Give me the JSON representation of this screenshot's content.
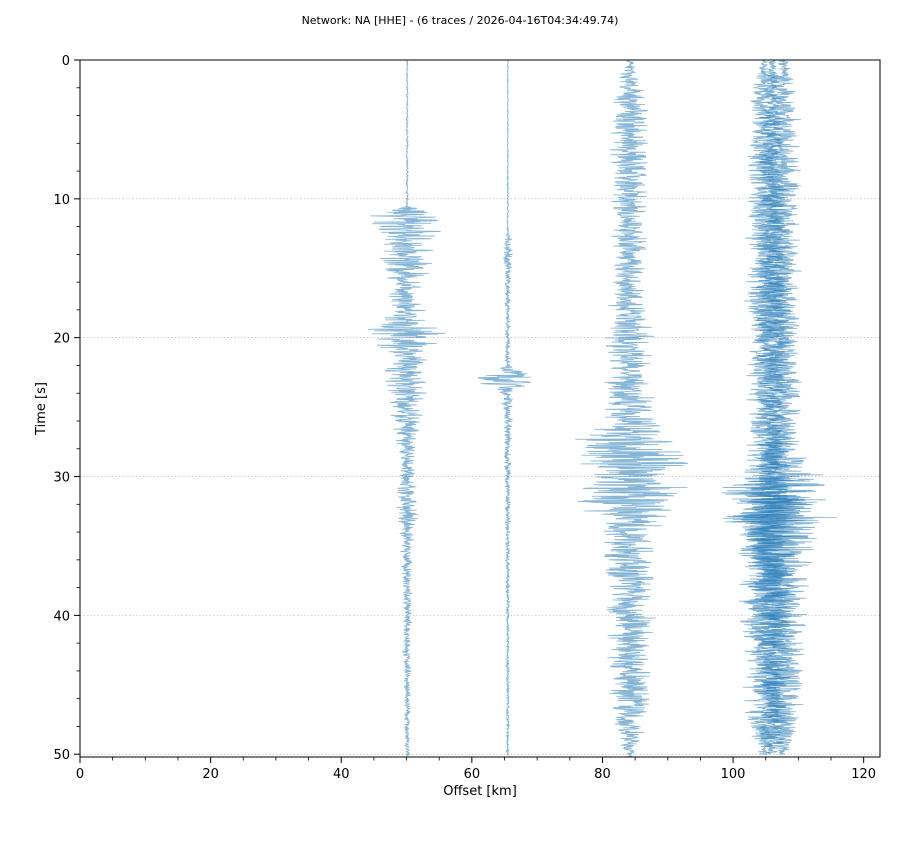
{
  "chart_data": {
    "type": "line",
    "title": "Network: NA [HHE] - (6 traces / 2026-04-16T04:34:49.74)",
    "xlabel": "Offset [km]",
    "ylabel": "Time [s]",
    "xlim": [
      0,
      122.5
    ],
    "ylim": [
      50.2,
      0
    ],
    "y_inverted": true,
    "x_ticks": [
      0,
      20,
      40,
      60,
      80,
      100,
      120
    ],
    "y_ticks": [
      0,
      10,
      20,
      30,
      40,
      50
    ],
    "x_minor_ticks": [
      5,
      10,
      15,
      25,
      30,
      35,
      45,
      50,
      55,
      65,
      70,
      75,
      85,
      90,
      95,
      105,
      110,
      115
    ],
    "y_minor_ticks": [
      2,
      4,
      6,
      8,
      12,
      14,
      16,
      18,
      22,
      24,
      26,
      28,
      32,
      34,
      36,
      38,
      42,
      44,
      46,
      48
    ],
    "grid": "horizontal dotted at y ticks",
    "trace_color": "#1f77b4",
    "trace_alpha": 0.55,
    "series": [
      {
        "offset_km": 50.1,
        "start_s": 0,
        "end_s": 50.1,
        "envelope": [
          [
            0,
            0.15
          ],
          [
            10.5,
            0.2
          ],
          [
            11.0,
            5
          ],
          [
            11.5,
            9
          ],
          [
            12,
            6
          ],
          [
            13.5,
            4
          ],
          [
            15,
            4.5
          ],
          [
            16,
            3
          ],
          [
            18,
            3
          ],
          [
            19,
            5
          ],
          [
            20,
            8
          ],
          [
            21,
            3.5
          ],
          [
            23,
            4
          ],
          [
            25,
            3
          ],
          [
            27,
            2
          ],
          [
            29,
            1.2
          ],
          [
            32,
            2
          ],
          [
            35,
            1
          ],
          [
            40,
            0.8
          ],
          [
            45,
            0.6
          ],
          [
            48,
            0.5
          ],
          [
            50.1,
            0.4
          ]
        ]
      },
      {
        "offset_km": 65.5,
        "start_s": 0,
        "end_s": 50.1,
        "envelope": [
          [
            0,
            0.1
          ],
          [
            12.5,
            0.15
          ],
          [
            13,
            0.8
          ],
          [
            14,
            0.9
          ],
          [
            16,
            0.5
          ],
          [
            20,
            0.4
          ],
          [
            22,
            0.5
          ],
          [
            22.5,
            3
          ],
          [
            23,
            8
          ],
          [
            23.5,
            3
          ],
          [
            24,
            1.2
          ],
          [
            26,
            0.8
          ],
          [
            30,
            0.5
          ],
          [
            40,
            0.3
          ],
          [
            50.1,
            0.25
          ]
        ]
      },
      {
        "offset_km": 84.2,
        "start_s": 0,
        "end_s": 50.2,
        "envelope": [
          [
            0,
            0.5
          ],
          [
            1,
            1.5
          ],
          [
            3,
            3
          ],
          [
            5,
            3.5
          ],
          [
            8,
            3
          ],
          [
            10,
            3
          ],
          [
            13,
            3
          ],
          [
            16,
            3
          ],
          [
            18,
            3.5
          ],
          [
            20,
            4
          ],
          [
            24,
            4
          ],
          [
            26,
            5
          ],
          [
            26.8,
            8
          ],
          [
            27.5,
            10
          ],
          [
            28.5,
            11
          ],
          [
            29.5,
            9
          ],
          [
            31.5,
            10
          ],
          [
            33,
            6
          ],
          [
            35,
            4
          ],
          [
            38,
            4.5
          ],
          [
            40,
            4
          ],
          [
            43,
            4
          ],
          [
            46,
            3.5
          ],
          [
            48,
            3
          ],
          [
            49.5,
            1.5
          ],
          [
            50.2,
            0.5
          ]
        ]
      },
      {
        "offset_km": 104.8,
        "start_s": 0,
        "end_s": 50.0,
        "envelope": [
          [
            0,
            0.5
          ],
          [
            2,
            2
          ],
          [
            5,
            3
          ],
          [
            10,
            3
          ],
          [
            15,
            3
          ],
          [
            17.5,
            4
          ],
          [
            20,
            3
          ],
          [
            25,
            3
          ],
          [
            30,
            4
          ],
          [
            30.8,
            7
          ],
          [
            32,
            8
          ],
          [
            34,
            6
          ],
          [
            36,
            5
          ],
          [
            40,
            4
          ],
          [
            45,
            3.5
          ],
          [
            48,
            3
          ],
          [
            50,
            1
          ]
        ]
      },
      {
        "offset_km": 106.0,
        "start_s": 0,
        "end_s": 50.0,
        "envelope": [
          [
            0,
            0.6
          ],
          [
            4,
            2
          ],
          [
            10,
            2.5
          ],
          [
            17,
            3
          ],
          [
            20,
            3
          ],
          [
            25,
            2.5
          ],
          [
            30,
            3
          ],
          [
            31.5,
            6
          ],
          [
            33,
            7
          ],
          [
            35,
            5
          ],
          [
            40,
            4
          ],
          [
            45,
            3
          ],
          [
            48,
            3
          ],
          [
            50,
            1
          ]
        ]
      },
      {
        "offset_km": 107.6,
        "start_s": 0,
        "end_s": 50.0,
        "envelope": [
          [
            0,
            0.8
          ],
          [
            2,
            2.5
          ],
          [
            5,
            3
          ],
          [
            10,
            3
          ],
          [
            15,
            3
          ],
          [
            20,
            3
          ],
          [
            25,
            3
          ],
          [
            28,
            3
          ],
          [
            30.5,
            10
          ],
          [
            32,
            11
          ],
          [
            33,
            9
          ],
          [
            35,
            6
          ],
          [
            37,
            5
          ],
          [
            40,
            4
          ],
          [
            45,
            3.5
          ],
          [
            48,
            3
          ],
          [
            50,
            1
          ]
        ]
      }
    ]
  }
}
